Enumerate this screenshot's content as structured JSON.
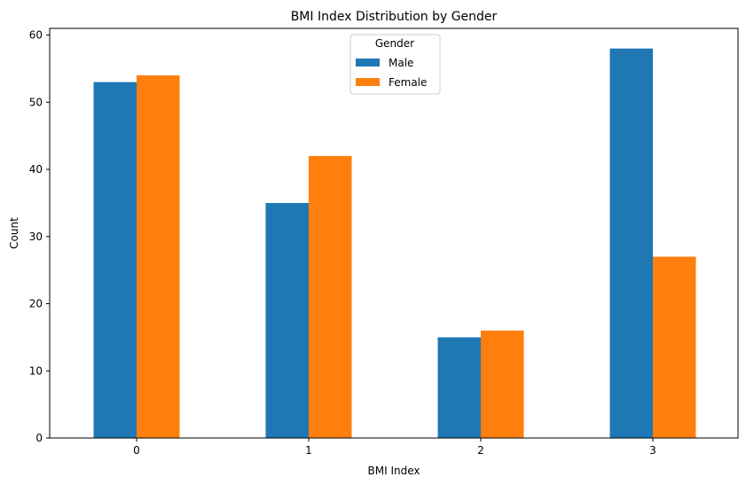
{
  "chart_data": {
    "type": "bar",
    "title": "BMI Index Distribution by Gender",
    "xlabel": "BMI Index",
    "ylabel": "Count",
    "categories": [
      "0",
      "1",
      "2",
      "3"
    ],
    "series": [
      {
        "name": "Male",
        "values": [
          53,
          35,
          15,
          58
        ],
        "color": "#1f77b4"
      },
      {
        "name": "Female",
        "values": [
          54,
          42,
          16,
          27
        ],
        "color": "#ff7f0e"
      }
    ],
    "ylim": [
      0,
      61
    ],
    "yticks": [
      0,
      10,
      20,
      30,
      40,
      50,
      60
    ],
    "legend": {
      "title": "Gender",
      "placement": "top-center"
    },
    "grid": false
  }
}
